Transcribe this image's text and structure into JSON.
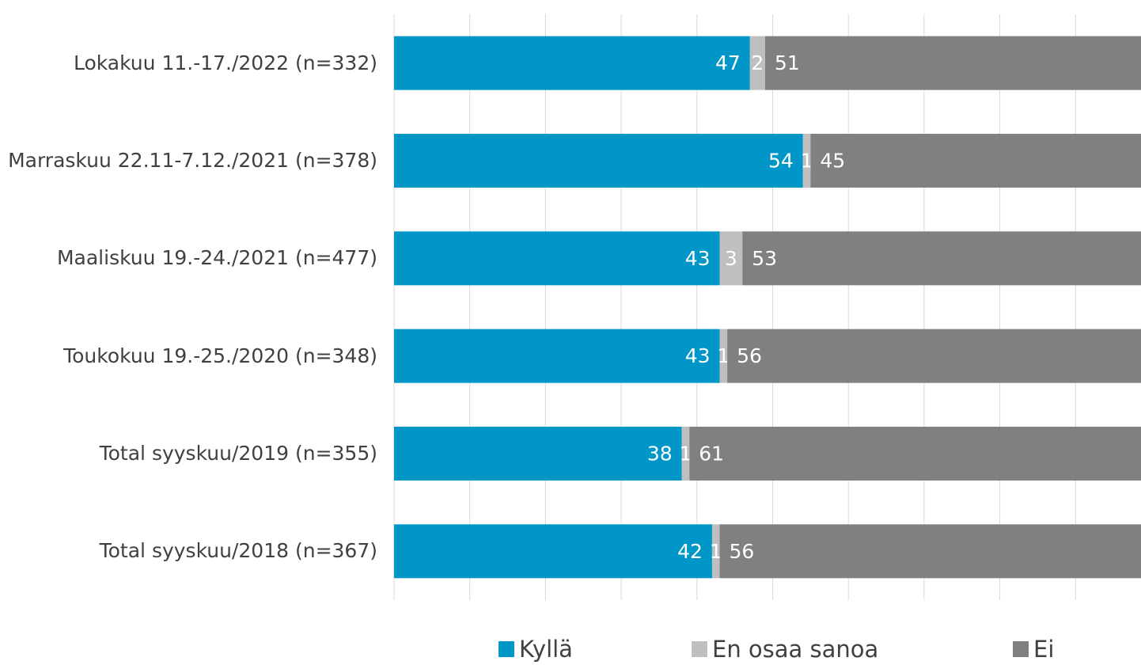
{
  "chart_data": {
    "type": "stacked_bar_horizontal",
    "categories": [
      "Lokakuu 11.-17./2022 (n=332)",
      "Marraskuu 22.11-7.12./2021 (n=378)",
      "Maaliskuu 19.-24./2021 (n=477)",
      "Toukokuu 19.-25./2020 (n=348)",
      "Total syyskuu/2019 (n=355)",
      "Total syyskuu/2018 (n=367)"
    ],
    "series": [
      {
        "name": "Kyllä",
        "color": "#0096c8",
        "values": [
          47,
          54,
          43,
          43,
          38,
          42
        ]
      },
      {
        "name": "En osaa sanoa",
        "color": "#bfbfbf",
        "values": [
          2,
          1,
          3,
          1,
          1,
          1
        ]
      },
      {
        "name": "Ei",
        "color": "#808080",
        "values": [
          51,
          45,
          53,
          56,
          61,
          56
        ]
      }
    ],
    "xlim": [
      0,
      100
    ],
    "xticks": [
      0,
      10,
      20,
      30,
      40,
      50,
      60,
      70,
      80,
      90,
      100
    ],
    "grid": true,
    "legend": "bottom"
  }
}
